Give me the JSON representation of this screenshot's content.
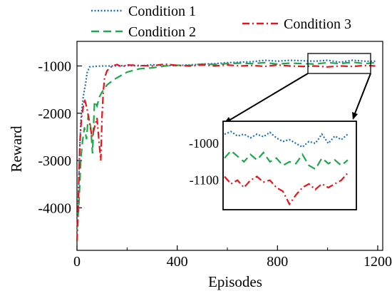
{
  "chart_data": {
    "type": "line",
    "xlabel": "Episodes",
    "ylabel": "Reward",
    "xlim": [
      0,
      1220
    ],
    "ylim": [
      -4900,
      -480
    ],
    "x_ticks": [
      0,
      400,
      800,
      1200
    ],
    "x_tick_labels": [
      "0",
      "400",
      "800",
      "1200"
    ],
    "y_ticks": [
      -4000,
      -3000,
      -2000,
      -1000
    ],
    "y_tick_labels": [
      "-4000",
      "-3000",
      "-2000",
      "-1000"
    ],
    "grid": false,
    "legend_placement": "top",
    "series": [
      {
        "name": "Condition 1",
        "color": "#1f6fc4",
        "style": "dotted",
        "points": [
          [
            0,
            -4400
          ],
          [
            5,
            -3900
          ],
          [
            10,
            -2900
          ],
          [
            15,
            -2200
          ],
          [
            20,
            -1900
          ],
          [
            25,
            -1650
          ],
          [
            30,
            -1500
          ],
          [
            35,
            -1350
          ],
          [
            40,
            -1150
          ],
          [
            50,
            -1020
          ],
          [
            70,
            -1010
          ],
          [
            100,
            -1000
          ],
          [
            150,
            -1000
          ],
          [
            200,
            -990
          ],
          [
            250,
            -1000
          ],
          [
            300,
            -975
          ],
          [
            350,
            -995
          ],
          [
            400,
            -990
          ],
          [
            450,
            -980
          ],
          [
            500,
            -960
          ],
          [
            550,
            -950
          ],
          [
            600,
            -930
          ],
          [
            650,
            -920
          ],
          [
            700,
            -910
          ],
          [
            750,
            -880
          ],
          [
            800,
            -900
          ],
          [
            850,
            -880
          ],
          [
            900,
            -890
          ],
          [
            950,
            -900
          ],
          [
            1000,
            -880
          ],
          [
            1050,
            -920
          ],
          [
            1100,
            -880
          ],
          [
            1150,
            -900
          ],
          [
            1190,
            -900
          ]
        ]
      },
      {
        "name": "Condition 2",
        "color": "#1ea84a",
        "style": "dashed",
        "points": [
          [
            0,
            -4450
          ],
          [
            8,
            -3900
          ],
          [
            15,
            -3000
          ],
          [
            22,
            -2600
          ],
          [
            30,
            -2300
          ],
          [
            38,
            -2550
          ],
          [
            45,
            -2050
          ],
          [
            55,
            -2300
          ],
          [
            62,
            -2850
          ],
          [
            70,
            -1750
          ],
          [
            80,
            -1850
          ],
          [
            90,
            -1650
          ],
          [
            100,
            -1550
          ],
          [
            120,
            -1400
          ],
          [
            150,
            -1280
          ],
          [
            200,
            -1130
          ],
          [
            250,
            -1060
          ],
          [
            300,
            -1040
          ],
          [
            350,
            -1000
          ],
          [
            400,
            -985
          ],
          [
            450,
            -990
          ],
          [
            500,
            -960
          ],
          [
            550,
            -970
          ],
          [
            600,
            -950
          ],
          [
            650,
            -940
          ],
          [
            700,
            -950
          ],
          [
            750,
            -930
          ],
          [
            800,
            -960
          ],
          [
            850,
            -940
          ],
          [
            900,
            -950
          ],
          [
            950,
            -960
          ],
          [
            1000,
            -930
          ],
          [
            1050,
            -950
          ],
          [
            1100,
            -920
          ],
          [
            1150,
            -950
          ],
          [
            1190,
            -930
          ]
        ]
      },
      {
        "name": "Condition 3",
        "color": "#e8141c",
        "style": "dashdot",
        "points": [
          [
            0,
            -4700
          ],
          [
            4,
            -4200
          ],
          [
            8,
            -3300
          ],
          [
            12,
            -2600
          ],
          [
            18,
            -2100
          ],
          [
            24,
            -1900
          ],
          [
            30,
            -1700
          ],
          [
            40,
            -1900
          ],
          [
            50,
            -2200
          ],
          [
            60,
            -2500
          ],
          [
            70,
            -2300
          ],
          [
            80,
            -2100
          ],
          [
            88,
            -2600
          ],
          [
            95,
            -3000
          ],
          [
            100,
            -2050
          ],
          [
            105,
            -1550
          ],
          [
            110,
            -1250
          ],
          [
            120,
            -1100
          ],
          [
            140,
            -1000
          ],
          [
            160,
            -970
          ],
          [
            180,
            -1020
          ],
          [
            200,
            -980
          ],
          [
            250,
            -990
          ],
          [
            300,
            -1000
          ],
          [
            350,
            -960
          ],
          [
            400,
            -990
          ],
          [
            450,
            -1000
          ],
          [
            500,
            -980
          ],
          [
            550,
            -1000
          ],
          [
            600,
            -980
          ],
          [
            650,
            -1000
          ],
          [
            700,
            -990
          ],
          [
            750,
            -1010
          ],
          [
            800,
            -980
          ],
          [
            850,
            -1000
          ],
          [
            900,
            -1010
          ],
          [
            950,
            -1000
          ],
          [
            1000,
            -1020
          ],
          [
            1050,
            -1000
          ],
          [
            1100,
            -1010
          ],
          [
            1150,
            -990
          ],
          [
            1190,
            -1000
          ]
        ]
      }
    ],
    "inset": {
      "x_range": [
        1000,
        1190
      ],
      "ylim": [
        -1180,
        -940
      ],
      "y_ticks": [
        -1000,
        -1100
      ],
      "y_tick_labels": [
        "-1000",
        "-1100"
      ],
      "series": [
        {
          "name": "Condition 1",
          "points": [
            [
              1000,
              -975
            ],
            [
              1010,
              -968
            ],
            [
              1020,
              -980
            ],
            [
              1030,
              -975
            ],
            [
              1040,
              -985
            ],
            [
              1050,
              -975
            ],
            [
              1060,
              -982
            ],
            [
              1070,
              -970
            ],
            [
              1080,
              -985
            ],
            [
              1090,
              -995
            ],
            [
              1100,
              -990
            ],
            [
              1110,
              -1000
            ],
            [
              1120,
              -1010
            ],
            [
              1130,
              -995
            ],
            [
              1140,
              -1000
            ],
            [
              1150,
              -975
            ],
            [
              1160,
              -1000
            ],
            [
              1170,
              -980
            ],
            [
              1180,
              -990
            ],
            [
              1190,
              -975
            ]
          ]
        },
        {
          "name": "Condition 2",
          "points": [
            [
              1000,
              -1040
            ],
            [
              1010,
              -1020
            ],
            [
              1020,
              -1035
            ],
            [
              1030,
              -1050
            ],
            [
              1040,
              -1030
            ],
            [
              1050,
              -1045
            ],
            [
              1060,
              -1025
            ],
            [
              1070,
              -1050
            ],
            [
              1080,
              -1040
            ],
            [
              1090,
              -1060
            ],
            [
              1100,
              -1050
            ],
            [
              1110,
              -1055
            ],
            [
              1120,
              -1030
            ],
            [
              1130,
              -1060
            ],
            [
              1140,
              -1070
            ],
            [
              1150,
              -1040
            ],
            [
              1160,
              -1055
            ],
            [
              1170,
              -1045
            ],
            [
              1180,
              -1060
            ],
            [
              1190,
              -1045
            ]
          ]
        },
        {
          "name": "Condition 3",
          "points": [
            [
              1000,
              -1090
            ],
            [
              1010,
              -1110
            ],
            [
              1020,
              -1100
            ],
            [
              1030,
              -1120
            ],
            [
              1040,
              -1100
            ],
            [
              1050,
              -1090
            ],
            [
              1060,
              -1105
            ],
            [
              1070,
              -1100
            ],
            [
              1080,
              -1120
            ],
            [
              1090,
              -1130
            ],
            [
              1100,
              -1165
            ],
            [
              1110,
              -1140
            ],
            [
              1120,
              -1120
            ],
            [
              1130,
              -1110
            ],
            [
              1140,
              -1125
            ],
            [
              1150,
              -1110
            ],
            [
              1160,
              -1120
            ],
            [
              1170,
              -1110
            ],
            [
              1180,
              -1100
            ],
            [
              1190,
              -1080
            ]
          ]
        }
      ]
    }
  }
}
